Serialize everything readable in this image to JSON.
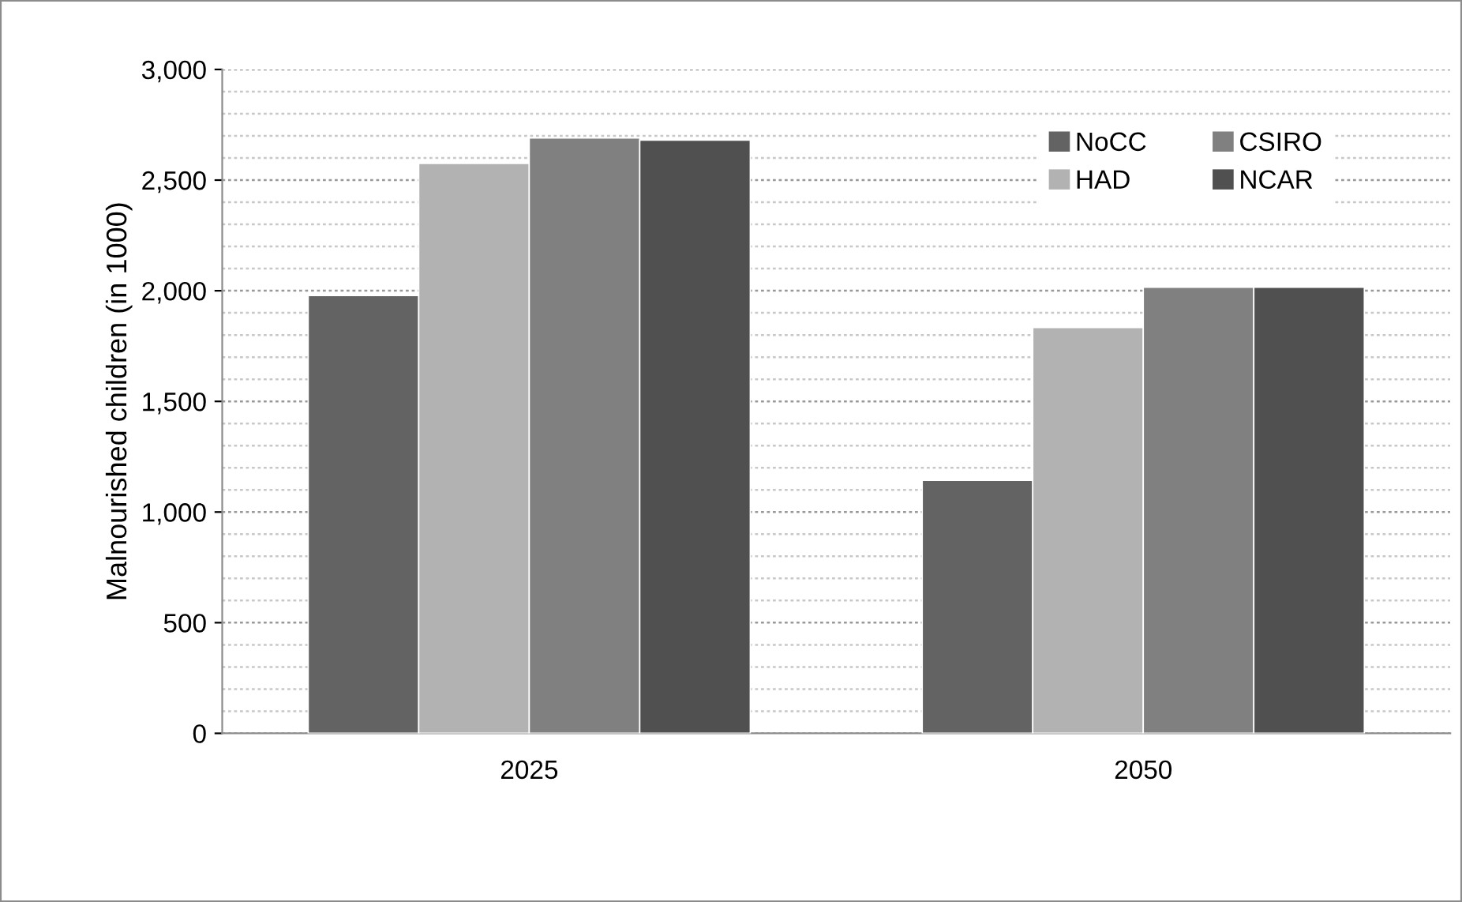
{
  "chart_data": {
    "type": "bar",
    "ylabel": "Malnourished children (in 1000)",
    "categories": [
      "2025",
      "2050"
    ],
    "series": [
      {
        "name": "NoCC",
        "color": "#636363",
        "values": [
          1978,
          1143
        ]
      },
      {
        "name": "HAD",
        "color": "#b2b2b2",
        "values": [
          2575,
          1834
        ]
      },
      {
        "name": "CSIRO",
        "color": "#808080",
        "values": [
          2690,
          2016
        ]
      },
      {
        "name": "NCAR",
        "color": "#505050",
        "values": [
          2681,
          2016
        ]
      }
    ],
    "ylim": [
      0,
      3000
    ],
    "yticks": [
      {
        "value": 0,
        "label": "0"
      },
      {
        "value": 500,
        "label": "500"
      },
      {
        "value": 1000,
        "label": "1,000"
      },
      {
        "value": 1500,
        "label": "1,500"
      },
      {
        "value": 2000,
        "label": "2,000"
      },
      {
        "value": 2500,
        "label": "2,500"
      },
      {
        "value": 3000,
        "label": "3,000"
      }
    ],
    "grid": "y",
    "legend": "top right"
  }
}
